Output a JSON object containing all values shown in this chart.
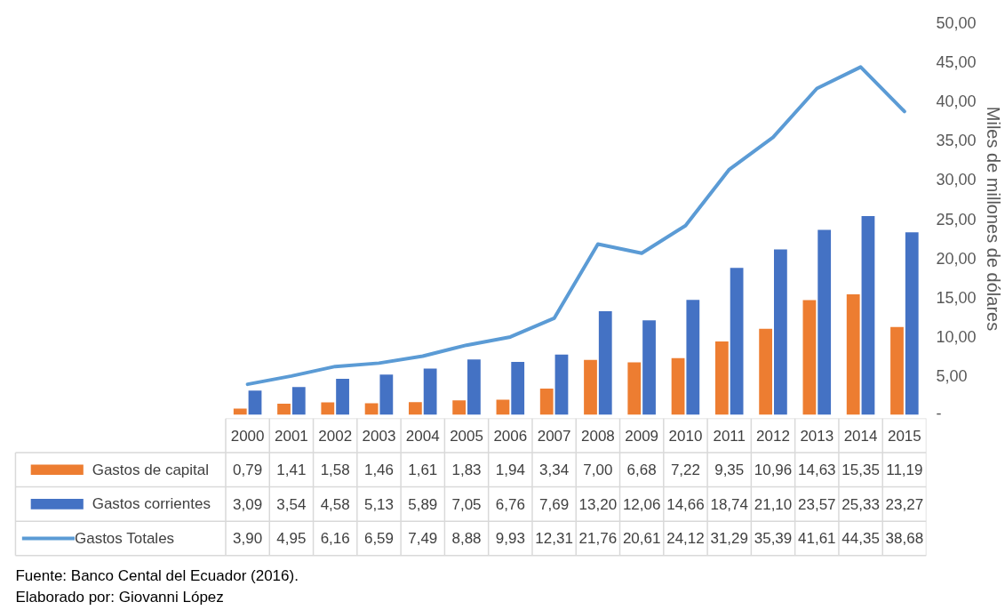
{
  "chart_data": {
    "type": "bar",
    "categories": [
      "2000",
      "2001",
      "2002",
      "2003",
      "2004",
      "2005",
      "2006",
      "2007",
      "2008",
      "2009",
      "2010",
      "2011",
      "2012",
      "2013",
      "2014",
      "2015"
    ],
    "series": [
      {
        "name": "Gastos de capital",
        "color": "#ed7d31",
        "values": [
          0.79,
          1.41,
          1.58,
          1.46,
          1.61,
          1.83,
          1.94,
          3.34,
          7.0,
          6.68,
          7.22,
          9.35,
          10.96,
          14.63,
          15.35,
          11.19
        ],
        "value_labels": [
          "0,79",
          "1,41",
          "1,58",
          "1,46",
          "1,61",
          "1,83",
          "1,94",
          "3,34",
          "7,00",
          "6,68",
          "7,22",
          "9,35",
          "10,96",
          "14,63",
          "15,35",
          "11,19"
        ]
      },
      {
        "name": "Gastos corrientes",
        "color": "#4472c4",
        "values": [
          3.09,
          3.54,
          4.58,
          5.13,
          5.89,
          7.05,
          6.76,
          7.69,
          13.2,
          12.06,
          14.66,
          18.74,
          21.1,
          23.57,
          25.33,
          23.27
        ],
        "value_labels": [
          "3,09",
          "3,54",
          "4,58",
          "5,13",
          "5,89",
          "7,05",
          "6,76",
          "7,69",
          "13,20",
          "12,06",
          "14,66",
          "18,74",
          "21,10",
          "23,57",
          "25,33",
          "23,27"
        ]
      },
      {
        "name": "Gastos Totales",
        "type": "line",
        "color": "#5b9bd5",
        "values": [
          3.9,
          4.95,
          6.16,
          6.59,
          7.49,
          8.88,
          9.93,
          12.31,
          21.76,
          20.61,
          24.12,
          31.29,
          35.39,
          41.61,
          44.35,
          38.68
        ],
        "value_labels": [
          "3,90",
          "4,95",
          "6,16",
          "6,59",
          "7,49",
          "8,88",
          "9,93",
          "12,31",
          "21,76",
          "20,61",
          "24,12",
          "31,29",
          "35,39",
          "41,61",
          "44,35",
          "38,68"
        ]
      }
    ],
    "ylabel": "Miles de millones de dólares",
    "ylim": [
      0,
      50
    ],
    "yticks": [
      {
        "value": 0,
        "label": "-"
      },
      {
        "value": 5,
        "label": "5,00"
      },
      {
        "value": 10,
        "label": "10,00"
      },
      {
        "value": 15,
        "label": "15,00"
      },
      {
        "value": 20,
        "label": "20,00"
      },
      {
        "value": 25,
        "label": "25,00"
      },
      {
        "value": 30,
        "label": "30,00"
      },
      {
        "value": 35,
        "label": "35,00"
      },
      {
        "value": 40,
        "label": "40,00"
      },
      {
        "value": 45,
        "label": "45,00"
      },
      {
        "value": 50,
        "label": "50,00"
      }
    ],
    "grid": false,
    "legend": "bottom",
    "annotations": [
      "Fuente: Banco Cental del Ecuador (2016).",
      "Elaborado por: Giovanni López"
    ]
  }
}
